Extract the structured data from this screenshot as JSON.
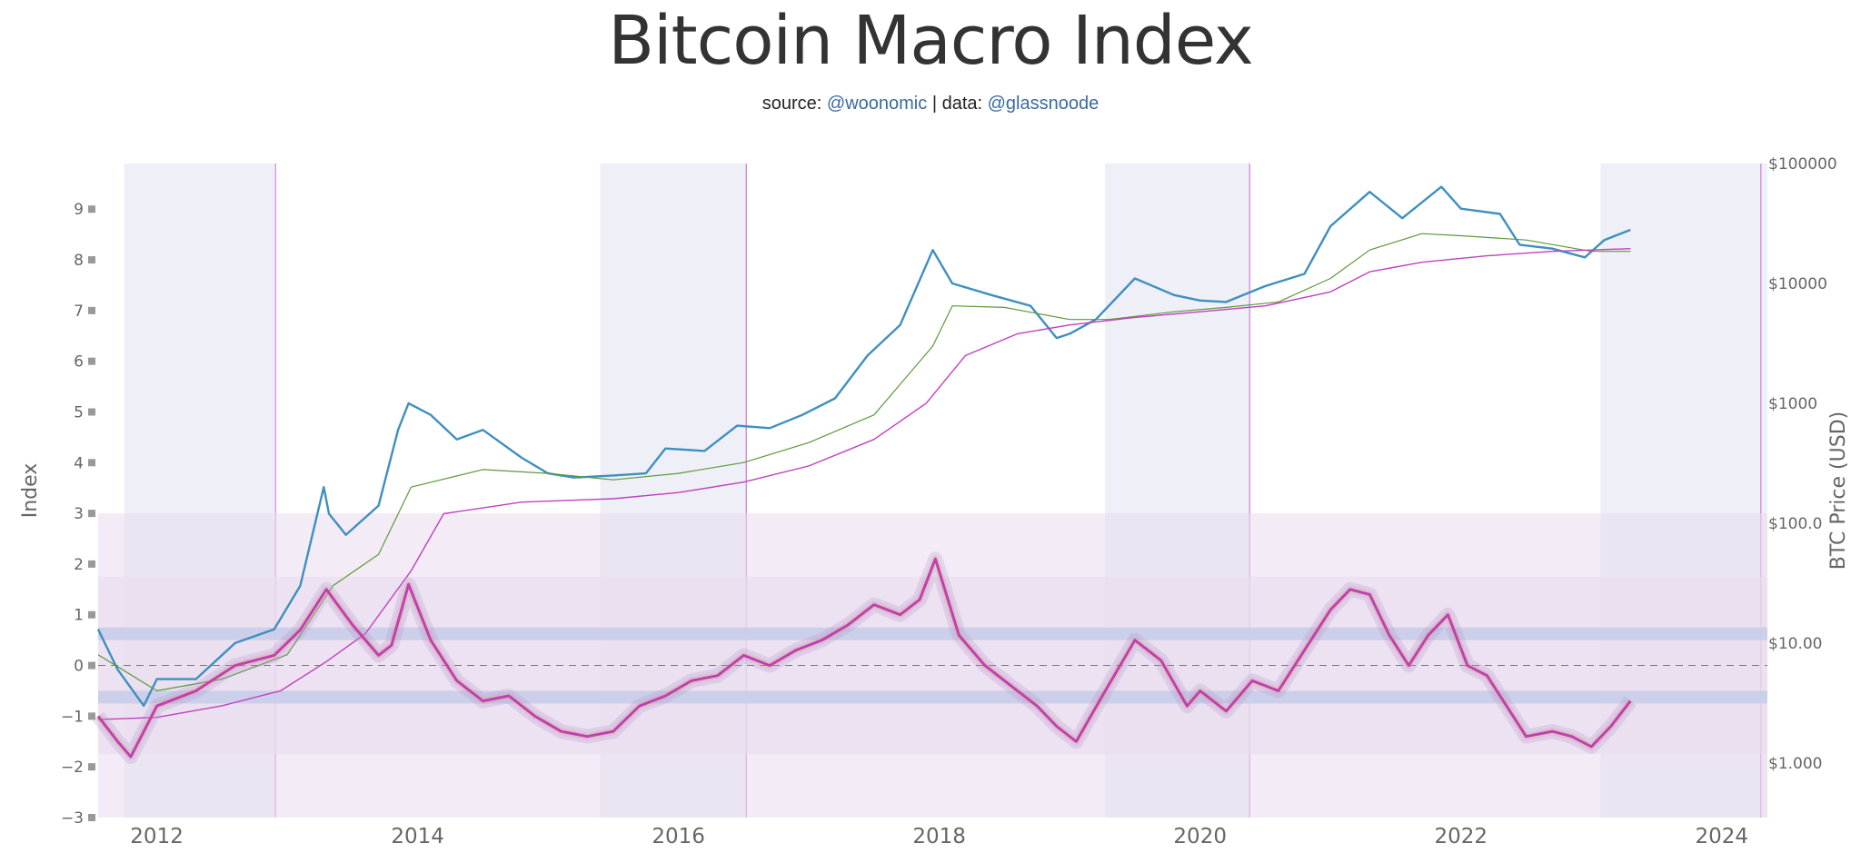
{
  "title": "Bitcoin Macro Index",
  "subtitle": {
    "source_prefix": "source:",
    "source_handle": "@woonomic",
    "separator": "|",
    "data_prefix": "data:",
    "data_handle": "@glassnoode"
  },
  "colors": {
    "price": "#3f8fbf",
    "green_ma": "#5a9a3a",
    "purple_ma": "#c040c0",
    "index_main": "#c040b0",
    "band": "#c8cde8",
    "highlight": "#dde0ef",
    "pink_zone": "#eadcee"
  },
  "chart_data": {
    "type": "line",
    "title": "Bitcoin Macro Index",
    "y_left_label": "Index",
    "y_right_label": "BTC Price (USD)",
    "y_left_ticks": [
      "−3",
      "−2",
      "−1",
      "0",
      "1",
      "2",
      "3",
      "4",
      "5",
      "6",
      "7",
      "8",
      "9"
    ],
    "y_left_range": [
      -3,
      9.9
    ],
    "y_right_ticks": [
      "$1.000",
      "$10.00",
      "$100.0",
      "$1000",
      "$10000",
      "$100000"
    ],
    "y_right_scale": "log",
    "y_right_range": [
      0.35,
      100000
    ],
    "x_ticks": [
      "2012",
      "2014",
      "2016",
      "2018",
      "2020",
      "2022",
      "2024"
    ],
    "x_range": [
      2011.55,
      2024.35
    ],
    "shaded_periods": [
      [
        2011.75,
        2012.9
      ],
      [
        2015.4,
        2016.52
      ],
      [
        2019.27,
        2020.38
      ],
      [
        2023.07,
        2024.35
      ]
    ],
    "halving_lines": [
      2012.91,
      2016.52,
      2020.38,
      2024.3
    ],
    "horizontal_bands": [
      {
        "name": "outer",
        "y": [
          -3,
          3
        ]
      },
      {
        "name": "inner",
        "y": [
          -1.75,
          1.75
        ]
      },
      {
        "name": "upper-line",
        "y": [
          0.5,
          0.75
        ]
      },
      {
        "name": "lower-line",
        "y": [
          -0.75,
          -0.5
        ]
      }
    ],
    "series": [
      {
        "name": "BTC Price",
        "axis": "right",
        "x": [
          2011.55,
          2011.7,
          2011.9,
          2012.0,
          2012.3,
          2012.6,
          2012.9,
          2013.1,
          2013.28,
          2013.32,
          2013.45,
          2013.7,
          2013.85,
          2013.93,
          2014.1,
          2014.3,
          2014.5,
          2014.8,
          2015.0,
          2015.2,
          2015.5,
          2015.75,
          2015.9,
          2016.2,
          2016.45,
          2016.7,
          2016.95,
          2017.2,
          2017.45,
          2017.7,
          2017.95,
          2018.1,
          2018.4,
          2018.7,
          2018.9,
          2019.0,
          2019.2,
          2019.5,
          2019.8,
          2020.0,
          2020.2,
          2020.5,
          2020.8,
          2021.0,
          2021.3,
          2021.55,
          2021.85,
          2022.0,
          2022.3,
          2022.45,
          2022.7,
          2022.95,
          2023.1,
          2023.3
        ],
        "values": [
          13,
          6,
          3,
          5,
          5,
          10,
          13,
          30,
          200,
          120,
          80,
          140,
          600,
          1000,
          800,
          500,
          600,
          350,
          260,
          240,
          250,
          260,
          420,
          400,
          650,
          620,
          800,
          1100,
          2500,
          4500,
          19000,
          10000,
          8000,
          6500,
          3500,
          3800,
          5000,
          11000,
          8000,
          7200,
          7000,
          9500,
          12000,
          30000,
          58000,
          35000,
          64000,
          42000,
          38000,
          21000,
          19500,
          16500,
          23000,
          28000
        ]
      },
      {
        "name": "Green MA",
        "axis": "right",
        "x": [
          2011.55,
          2012.0,
          2012.5,
          2013.0,
          2013.35,
          2013.7,
          2013.95,
          2014.5,
          2015.0,
          2015.5,
          2016.0,
          2016.5,
          2017.0,
          2017.5,
          2017.95,
          2018.1,
          2018.5,
          2019.0,
          2019.3,
          2019.8,
          2020.2,
          2020.6,
          2021.0,
          2021.3,
          2021.7,
          2022.0,
          2022.5,
          2023.0,
          2023.3
        ],
        "values": [
          8,
          4,
          5,
          8,
          30,
          55,
          200,
          280,
          260,
          230,
          260,
          320,
          470,
          800,
          3000,
          6500,
          6300,
          5000,
          5000,
          5800,
          6300,
          7000,
          11000,
          19000,
          26000,
          25000,
          23000,
          18500,
          18500
        ]
      },
      {
        "name": "Purple MA",
        "axis": "right",
        "x": [
          2011.55,
          2012.0,
          2012.5,
          2012.95,
          2013.3,
          2013.6,
          2013.95,
          2014.2,
          2014.8,
          2015.5,
          2016.0,
          2016.5,
          2017.0,
          2017.5,
          2017.9,
          2018.2,
          2018.6,
          2019.0,
          2019.5,
          2020.0,
          2020.5,
          2021.0,
          2021.3,
          2021.7,
          2022.2,
          2022.7,
          2023.3
        ],
        "values": [
          2.3,
          2.4,
          3,
          4,
          7,
          12,
          40,
          120,
          150,
          160,
          180,
          220,
          300,
          500,
          1000,
          2500,
          3800,
          4500,
          5200,
          5800,
          6500,
          8500,
          12500,
          15000,
          17000,
          18500,
          19500
        ]
      },
      {
        "name": "Macro Index",
        "axis": "left",
        "x": [
          2011.55,
          2011.7,
          2011.8,
          2012.0,
          2012.3,
          2012.6,
          2012.9,
          2013.1,
          2013.3,
          2013.5,
          2013.7,
          2013.8,
          2013.93,
          2014.1,
          2014.3,
          2014.5,
          2014.7,
          2014.9,
          2015.1,
          2015.3,
          2015.5,
          2015.7,
          2015.9,
          2016.1,
          2016.3,
          2016.5,
          2016.7,
          2016.9,
          2017.1,
          2017.3,
          2017.5,
          2017.7,
          2017.85,
          2017.97,
          2018.15,
          2018.35,
          2018.55,
          2018.75,
          2018.9,
          2019.05,
          2019.25,
          2019.5,
          2019.7,
          2019.9,
          2020.0,
          2020.2,
          2020.4,
          2020.6,
          2020.8,
          2021.0,
          2021.15,
          2021.3,
          2021.45,
          2021.6,
          2021.75,
          2021.9,
          2022.05,
          2022.2,
          2022.35,
          2022.5,
          2022.7,
          2022.85,
          2023.0,
          2023.15,
          2023.3
        ],
        "values": [
          -1.0,
          -1.5,
          -1.8,
          -0.8,
          -0.5,
          0.0,
          0.2,
          0.7,
          1.5,
          0.8,
          0.2,
          0.4,
          1.6,
          0.5,
          -0.3,
          -0.7,
          -0.6,
          -1.0,
          -1.3,
          -1.4,
          -1.3,
          -0.8,
          -0.6,
          -0.3,
          -0.2,
          0.2,
          0.0,
          0.3,
          0.5,
          0.8,
          1.2,
          1.0,
          1.3,
          2.1,
          0.6,
          0.0,
          -0.4,
          -0.8,
          -1.2,
          -1.5,
          -0.6,
          0.5,
          0.1,
          -0.8,
          -0.5,
          -0.9,
          -0.3,
          -0.5,
          0.3,
          1.1,
          1.5,
          1.4,
          0.6,
          0.0,
          0.6,
          1.0,
          0.0,
          -0.2,
          -0.8,
          -1.4,
          -1.3,
          -1.4,
          -1.6,
          -1.2,
          -0.7
        ]
      }
    ]
  }
}
